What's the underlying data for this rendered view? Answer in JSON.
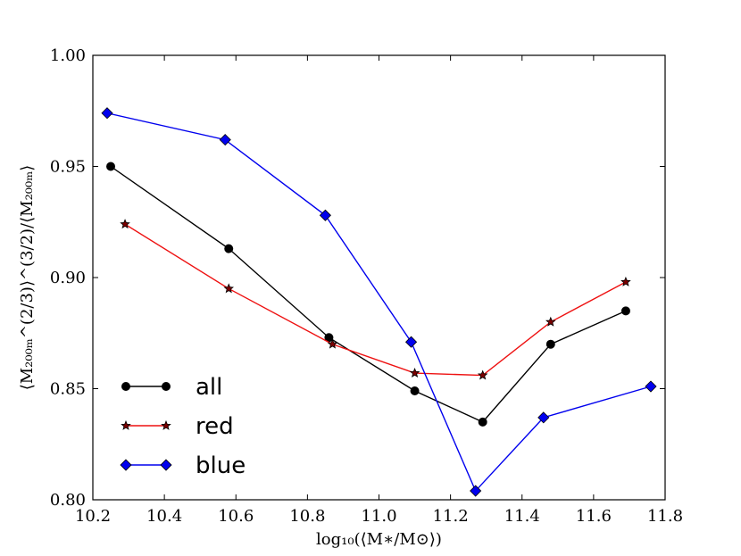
{
  "chart_data": {
    "type": "line",
    "xlabel": "log₁₀(⟨M∗/M⊙⟩)",
    "ylabel": "⟨M₂₀₀ₘ^(2/3)⟩^(3/2)/⟨M₂₀₀ₘ⟩",
    "xlim": [
      10.2,
      11.8
    ],
    "ylim": [
      0.8,
      1.0
    ],
    "xticks": [
      "10.2",
      "10.4",
      "10.6",
      "10.8",
      "11.0",
      "11.2",
      "11.4",
      "11.6",
      "11.8"
    ],
    "yticks": [
      "0.80",
      "0.85",
      "0.90",
      "0.95",
      "1.00"
    ],
    "grid": false,
    "legend": "lower-left",
    "series": [
      {
        "name": "all",
        "color": "#000000",
        "marker": "circle",
        "x": [
          10.25,
          10.58,
          10.86,
          11.1,
          11.29,
          11.48,
          11.69
        ],
        "y": [
          0.95,
          0.913,
          0.873,
          0.849,
          0.835,
          0.87,
          0.885
        ]
      },
      {
        "name": "red",
        "color": "#ee1111",
        "marker": "star",
        "x": [
          10.29,
          10.58,
          10.87,
          11.1,
          11.29,
          11.48,
          11.69
        ],
        "y": [
          0.924,
          0.895,
          0.87,
          0.857,
          0.856,
          0.88,
          0.898
        ]
      },
      {
        "name": "blue",
        "color": "#0000ee",
        "marker": "diamond",
        "x": [
          10.24,
          10.57,
          10.85,
          11.09,
          11.27,
          11.46,
          11.76
        ],
        "y": [
          0.974,
          0.962,
          0.928,
          0.871,
          0.804,
          0.837,
          0.851
        ]
      }
    ]
  }
}
